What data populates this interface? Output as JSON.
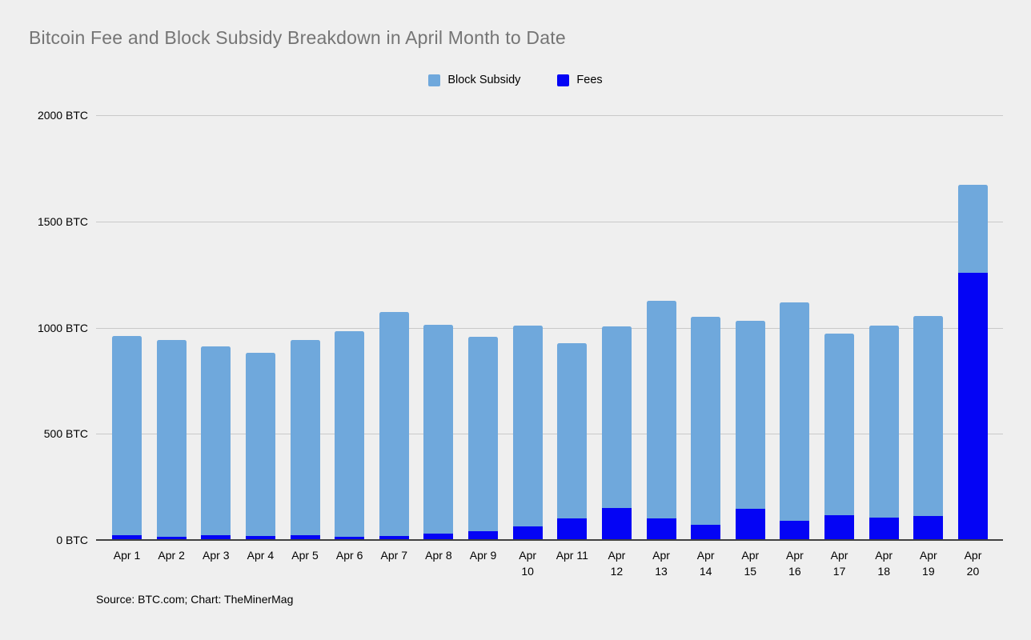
{
  "header": {
    "title": "Bitcoin Fee and Block Subsidy Breakdown in April Month to Date"
  },
  "legend": {
    "items": [
      {
        "label": "Block Subsidy",
        "color": "#6fa8dc"
      },
      {
        "label": "Fees",
        "color": "#0404f5"
      }
    ]
  },
  "footer": {
    "source": "Source: BTC.com; Chart: TheMinerMag"
  },
  "colors": {
    "background": "#efefef",
    "title_text": "#757575",
    "gridline": "#c9c9c9",
    "axis_line": "#424242",
    "block_subsidy": "#6fa8dc",
    "fees": "#0404f5"
  },
  "chart_data": {
    "type": "bar",
    "stacked": true,
    "title": "Bitcoin Fee and Block Subsidy Breakdown in April Month to Date",
    "xlabel": "",
    "ylabel": "BTC",
    "ylim": [
      0,
      2000
    ],
    "grid": true,
    "legend_position": "top",
    "categories": [
      "Apr 1",
      "Apr 2",
      "Apr 3",
      "Apr 4",
      "Apr 5",
      "Apr 6",
      "Apr 7",
      "Apr 8",
      "Apr 9",
      "Apr 10",
      "Apr 11",
      "Apr 12",
      "Apr 13",
      "Apr 14",
      "Apr 15",
      "Apr 16",
      "Apr 17",
      "Apr 18",
      "Apr 19",
      "Apr 20"
    ],
    "x_tick_lines": [
      [
        "Apr 1"
      ],
      [
        "Apr 2"
      ],
      [
        "Apr 3"
      ],
      [
        "Apr 4"
      ],
      [
        "Apr 5"
      ],
      [
        "Apr 6"
      ],
      [
        "Apr 7"
      ],
      [
        "Apr 8"
      ],
      [
        "Apr 9"
      ],
      [
        "Apr",
        "10"
      ],
      [
        "Apr 11"
      ],
      [
        "Apr",
        "12"
      ],
      [
        "Apr",
        "13"
      ],
      [
        "Apr",
        "14"
      ],
      [
        "Apr",
        "15"
      ],
      [
        "Apr",
        "16"
      ],
      [
        "Apr",
        "17"
      ],
      [
        "Apr",
        "18"
      ],
      [
        "Apr",
        "19"
      ],
      [
        "Apr",
        "20"
      ]
    ],
    "y_ticks": [
      {
        "label": "2000 BTC",
        "value": 2000
      },
      {
        "label": "1500 BTC",
        "value": 1500
      },
      {
        "label": "1000 BTC",
        "value": 1000
      },
      {
        "label": "500 BTC",
        "value": 500
      },
      {
        "label": "0 BTC",
        "value": 0
      }
    ],
    "series": [
      {
        "name": "Fees",
        "color": "#0404f5",
        "stack_position": "bottom",
        "values": [
          22,
          17,
          23,
          20,
          21,
          14,
          20,
          30,
          43,
          64,
          101,
          151,
          101,
          70,
          148,
          91,
          116,
          104,
          114,
          1257
        ]
      },
      {
        "name": "Block Subsidy",
        "color": "#6fa8dc",
        "stack_position": "top",
        "values": [
          940,
          925,
          890,
          863,
          920,
          971,
          1055,
          985,
          913,
          944,
          824,
          855,
          1025,
          980,
          883,
          1028,
          855,
          906,
          941,
          416
        ]
      }
    ],
    "totals": [
      962,
      942,
      913,
      883,
      941,
      985,
      1075,
      1015,
      956,
      1008,
      925,
      1006,
      1126,
      1050,
      1031,
      1119,
      971,
      1010,
      1055,
      1673
    ]
  }
}
